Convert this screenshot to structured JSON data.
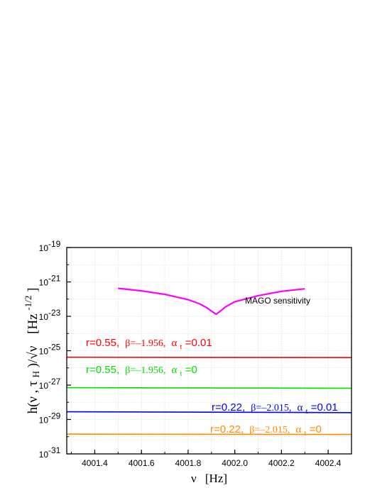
{
  "chart_data": {
    "type": "line",
    "xlabel": {
      "prefix": "ν",
      "unit": "[Hz]"
    },
    "ylabel": {
      "main": "h(ν , τ",
      "sub": "H",
      "tail": ")/√ν",
      "unit_base": "[Hz",
      "unit_exp": "-1/2",
      "unit_end": "]"
    },
    "xlim": [
      4001.28,
      4002.5
    ],
    "ylim_log10": [
      -31,
      -19
    ],
    "y_scale": "log",
    "grid": true,
    "x_ticks": [
      {
        "value": 4001.4,
        "label": "4001.4"
      },
      {
        "value": 4001.6,
        "label": "4001.6"
      },
      {
        "value": 4001.8,
        "label": "4001.8"
      },
      {
        "value": 4002.0,
        "label": "4002.0"
      },
      {
        "value": 4002.2,
        "label": "4002.2"
      },
      {
        "value": 4002.4,
        "label": "4002.4"
      }
    ],
    "y_ticks": [
      {
        "exp": -19,
        "base": "10",
        "sup": "-19"
      },
      {
        "exp": -21,
        "base": "10",
        "sup": "-21"
      },
      {
        "exp": -23,
        "base": "10",
        "sup": "-23"
      },
      {
        "exp": -25,
        "base": "10",
        "sup": "-25"
      },
      {
        "exp": -27,
        "base": "10",
        "sup": "-27"
      },
      {
        "exp": -29,
        "base": "10",
        "sup": "-29"
      },
      {
        "exp": -31,
        "base": "10",
        "sup": "-31"
      }
    ],
    "series": [
      {
        "key": "mago",
        "color": "#ff00ff",
        "x": [
          4001.5,
          4001.6,
          4001.7,
          4001.8,
          4001.85,
          4001.88,
          4001.9,
          4001.92,
          4001.94,
          4001.96,
          4002.0,
          4002.1,
          4002.2,
          4002.3
        ],
        "log10_y": [
          -21.37,
          -21.52,
          -21.72,
          -22.03,
          -22.28,
          -22.5,
          -22.7,
          -22.88,
          -22.68,
          -22.45,
          -22.15,
          -21.8,
          -21.55,
          -21.4
        ],
        "label": {
          "text": "MAGO sensitivity"
        }
      },
      {
        "key": "r055_a001",
        "color": "#ff0000",
        "x": [
          4001.28,
          4002.5
        ],
        "log10_y": [
          -25.38,
          -25.4
        ],
        "label": {
          "r": "r=0.55,",
          "beta": "β=–1.956,",
          "alpha": "α",
          "alpha_sub": "t",
          "val": "=0.01"
        }
      },
      {
        "key": "r055_a0",
        "color": "#00e000",
        "x": [
          4001.28,
          4002.5
        ],
        "log10_y": [
          -27.15,
          -27.18
        ],
        "label": {
          "r": "r=0.55,",
          "beta": "β=–1.956,",
          "alpha": "α",
          "alpha_sub": "t",
          "val": "=0"
        }
      },
      {
        "key": "r022_a001",
        "color": "#0000ff",
        "x": [
          4001.28,
          4002.5
        ],
        "log10_y": [
          -28.55,
          -28.6
        ],
        "label": {
          "r": "r=0.22,",
          "beta": "β=–2.015,",
          "alpha": "α",
          "alpha_sub": "t",
          "val": "=0.01"
        }
      },
      {
        "key": "r022_a0",
        "color": "#ff8c00",
        "x": [
          4001.28,
          4002.5
        ],
        "log10_y": [
          -29.85,
          -29.87
        ],
        "label": {
          "r": "r=0.22,",
          "beta": "β=–2.015,",
          "alpha": "α",
          "alpha_sub": "t",
          "val": "=0"
        }
      }
    ]
  }
}
